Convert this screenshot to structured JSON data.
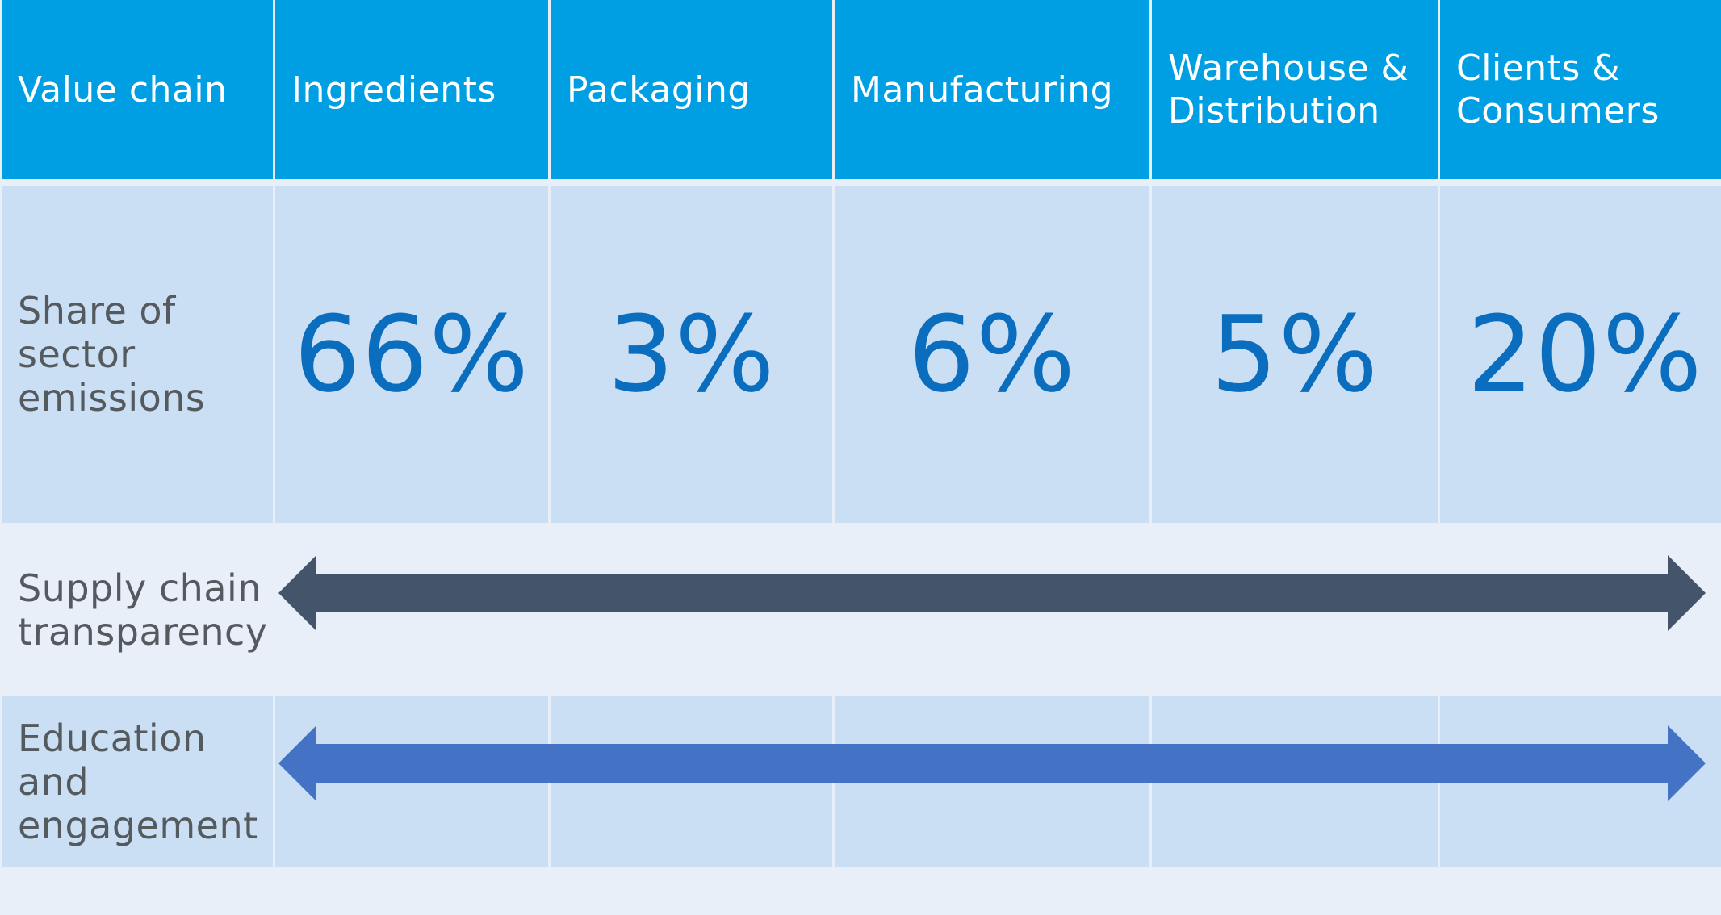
{
  "chart_data": {
    "type": "table",
    "columns": [
      "Value chain",
      "Ingredients",
      "Packaging",
      "Manufacturing",
      "Warehouse & Distribution",
      "Clients & Consumers"
    ],
    "header": {
      "row_label": "Value chain",
      "stages": [
        {
          "line1": "Ingredients",
          "line2": ""
        },
        {
          "line1": "Packaging",
          "line2": ""
        },
        {
          "line1": "Manufacturing",
          "line2": ""
        },
        {
          "line1": "Warehouse &",
          "line2": "Distribution"
        },
        {
          "line1": "Clients &",
          "line2": "Consumers"
        }
      ]
    },
    "rows": [
      {
        "label_lines": [
          "Share of",
          "sector",
          "emissions"
        ],
        "values": [
          "66%",
          "3%",
          "6%",
          "5%",
          "20%"
        ],
        "numeric_values": [
          66,
          3,
          6,
          5,
          20
        ]
      },
      {
        "label_lines": [
          "Supply chain",
          "transparency"
        ],
        "span": "Ingredients to Clients & Consumers",
        "arrow_color": "#44546a"
      },
      {
        "label_lines": [
          "Education",
          "and",
          "engagement"
        ],
        "span": "Ingredients to Clients & Consumers",
        "arrow_color": "#4472c4"
      }
    ],
    "colors": {
      "header_bg": "#009fe3",
      "row_mid_bg": "#cadff4",
      "row_light_bg": "#e8eff9",
      "percent_text": "#0a6dbd",
      "label_text": "#555a5f"
    }
  }
}
